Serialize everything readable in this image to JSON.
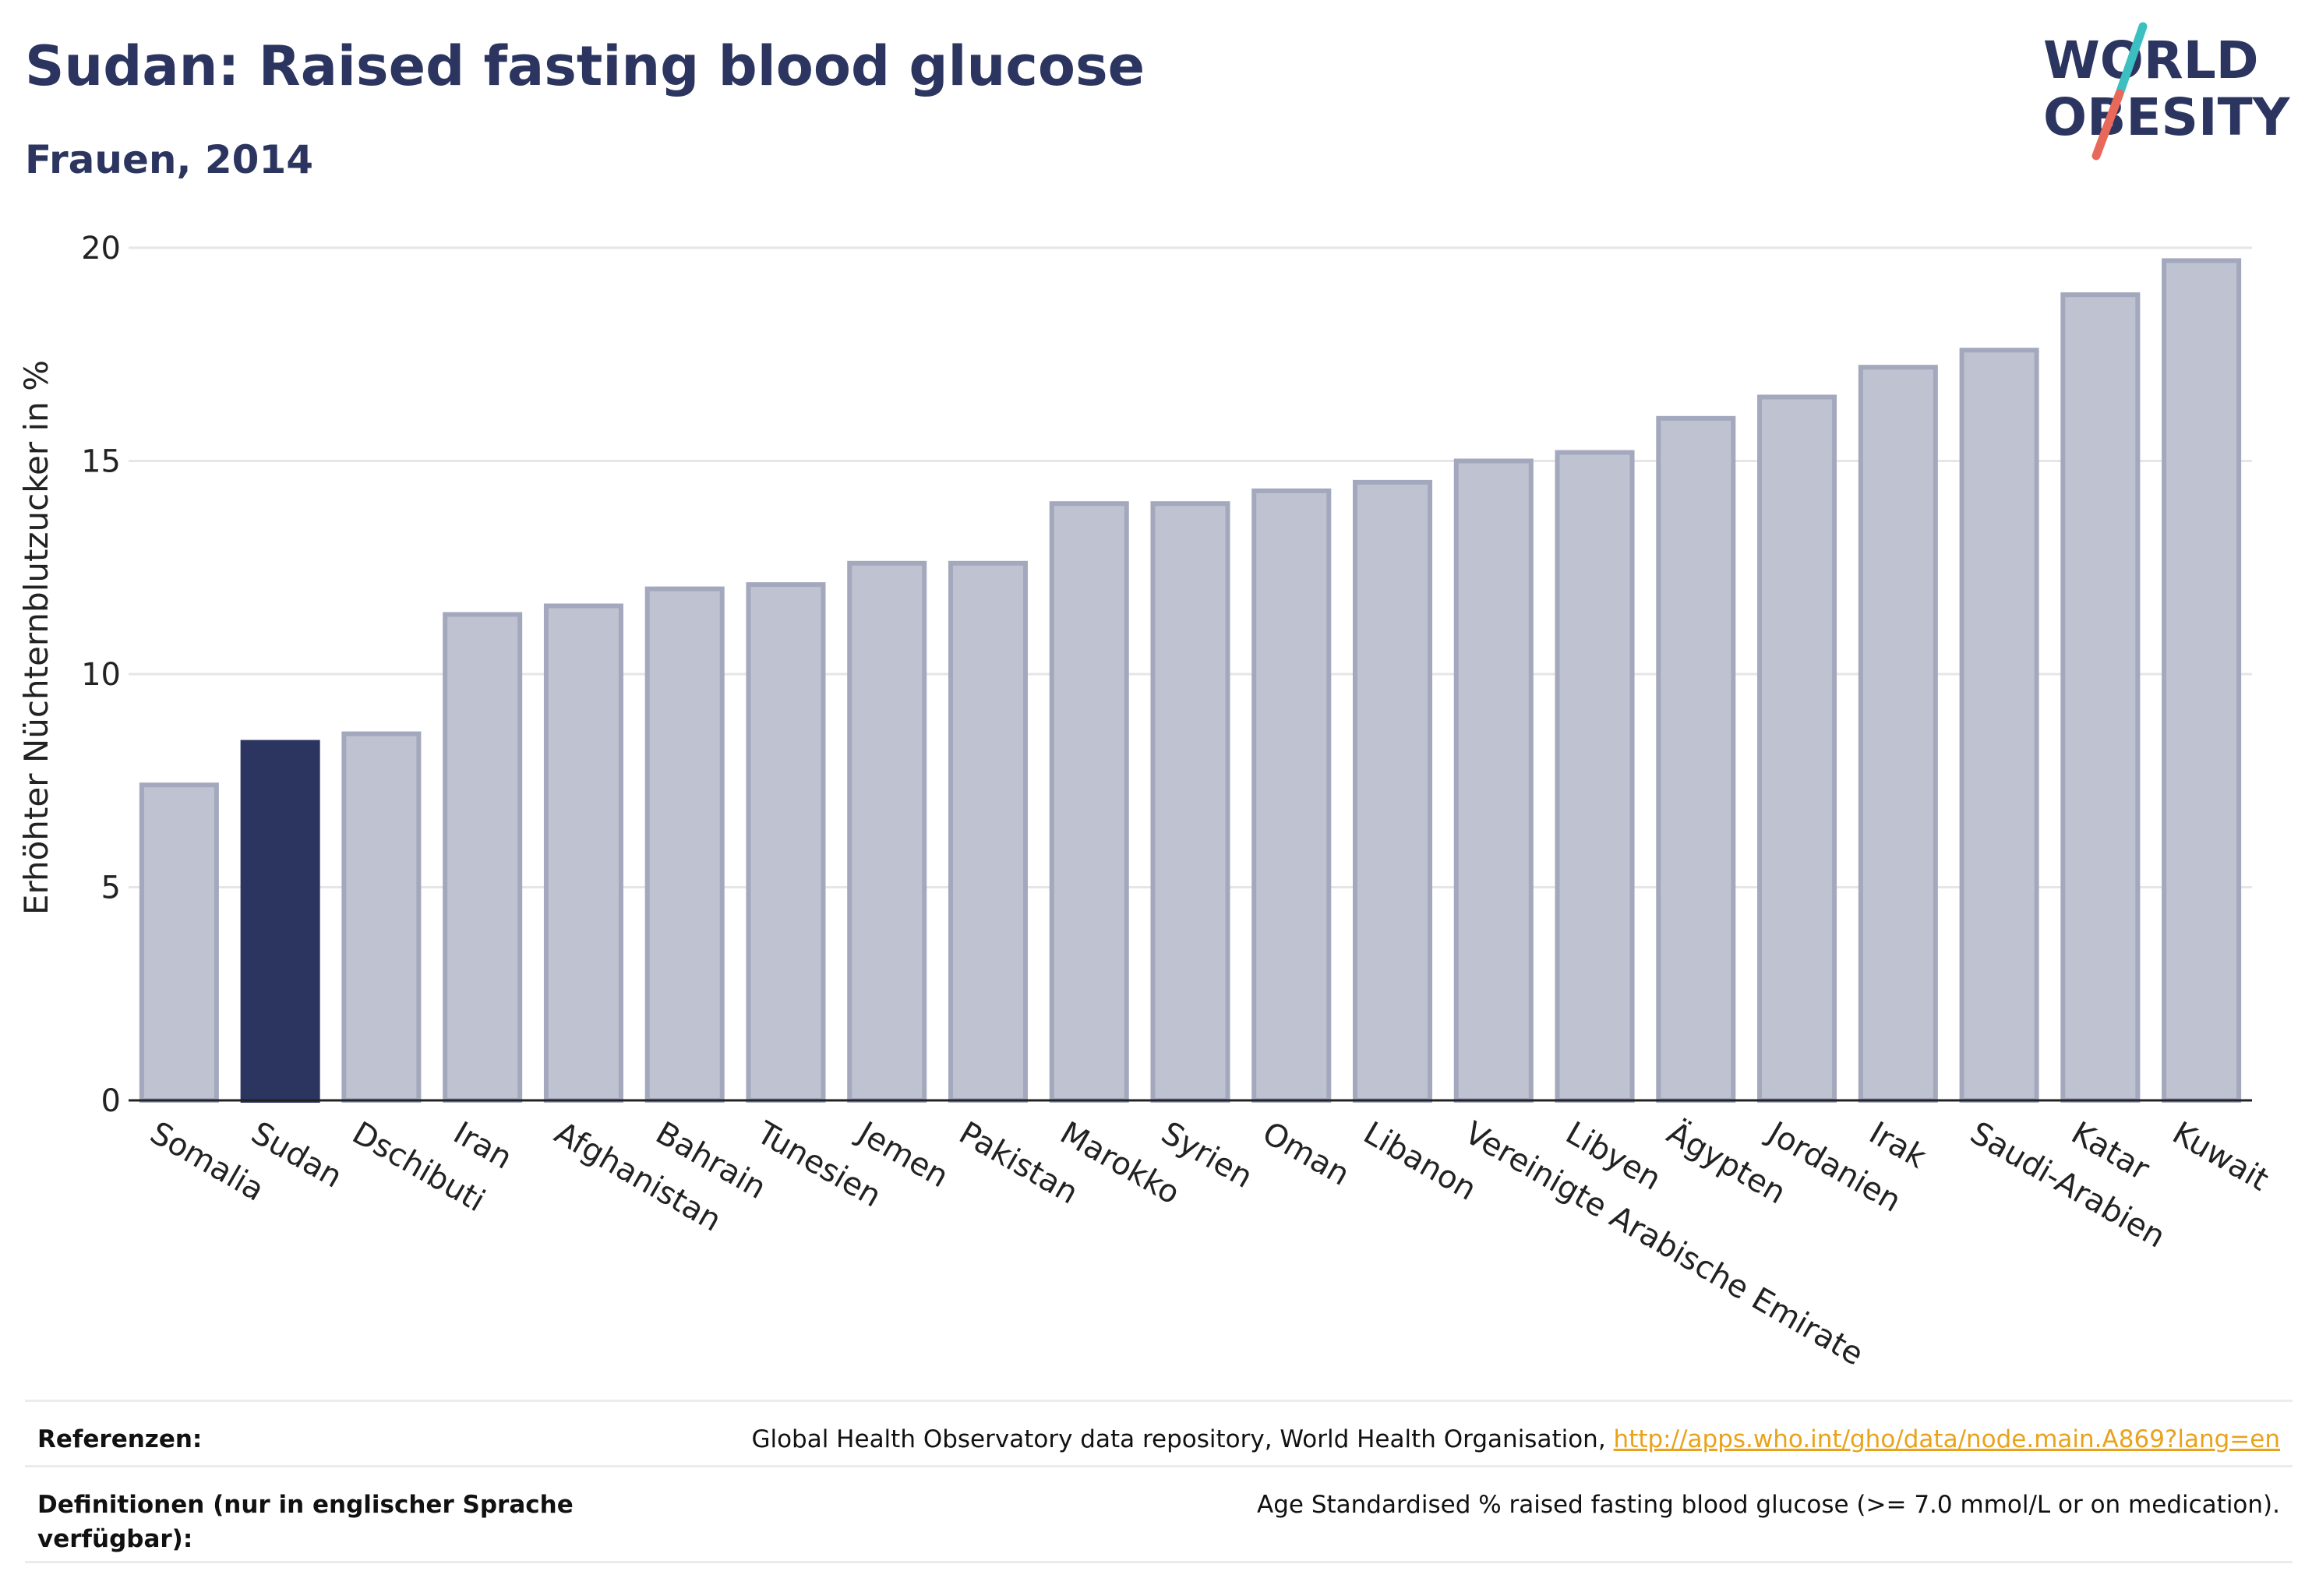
{
  "header": {
    "title": "Sudan: Raised fasting blood glucose",
    "subtitle": "Frauen, 2014"
  },
  "logo": {
    "line1": "WORLD",
    "line2": "OBESITY"
  },
  "colors": {
    "bar": "#bfc2d0",
    "bar_stroke": "#a3a8bd",
    "highlight": "#2b3560",
    "grid": "#e6e6e6"
  },
  "chart_data": {
    "type": "bar",
    "ylabel": "Erhöhter Nüchternblutzucker in %",
    "ylim": [
      0,
      20
    ],
    "yticks": [
      0,
      5,
      10,
      15,
      20
    ],
    "grid": true,
    "highlight": "Sudan",
    "categories": [
      "Somalia",
      "Sudan",
      "Dschibuti",
      "Iran",
      "Afghanistan",
      "Bahrain",
      "Tunesien",
      "Jemen",
      "Pakistan",
      "Marokko",
      "Syrien",
      "Oman",
      "Libanon",
      "Vereinigte Arabische Emirate",
      "Libyen",
      "Ägypten",
      "Jordanien",
      "Irak",
      "Saudi-Arabien",
      "Katar",
      "Kuwait"
    ],
    "values": [
      7.4,
      8.4,
      8.6,
      11.4,
      11.6,
      12.0,
      12.1,
      12.6,
      12.6,
      14.0,
      14.0,
      14.3,
      14.5,
      15.0,
      15.2,
      16.0,
      16.5,
      17.2,
      17.6,
      18.9,
      19.7
    ]
  },
  "footer": {
    "references_label": "Referenzen:",
    "references_text": "Global Health Observatory data repository, World Health Organisation, ",
    "references_link": "http://apps.who.int/gho/data/node.main.A869?lang=en",
    "definitions_label": "Definitionen (nur in englischer Sprache verfügbar):",
    "definitions_text": "Age Standardised % raised fasting blood glucose (>= 7.0 mmol/L or on medication)."
  }
}
